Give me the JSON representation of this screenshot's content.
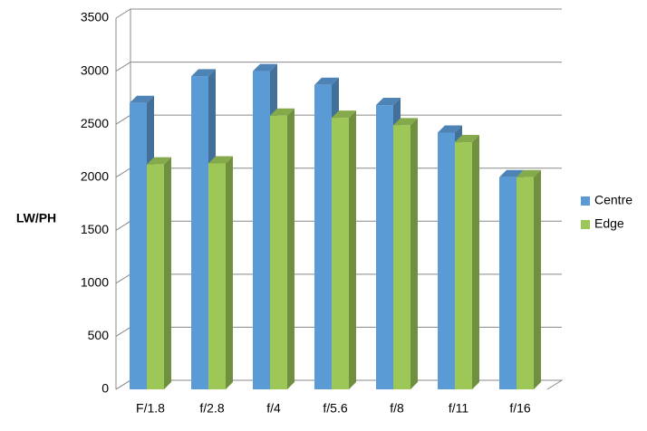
{
  "chart_data": {
    "type": "bar3d",
    "y_axis_label": "LW/PH",
    "categories": [
      "F/1.8",
      "f/2.8",
      "f/4",
      "f/5.6",
      "f/8",
      "f/11",
      "f/16"
    ],
    "series": [
      {
        "name": "Centre",
        "color": "#5b9bd5",
        "values": [
          2700,
          2950,
          3000,
          2870,
          2680,
          2420,
          2000
        ]
      },
      {
        "name": "Edge",
        "color": "#9dc858",
        "values": [
          2120,
          2130,
          2580,
          2560,
          2490,
          2330,
          2000
        ]
      }
    ],
    "ylim": [
      0,
      3500
    ],
    "yticks": [
      0,
      500,
      1000,
      1500,
      2000,
      2500,
      3000,
      3500
    ],
    "grid": true,
    "legend": "right"
  }
}
